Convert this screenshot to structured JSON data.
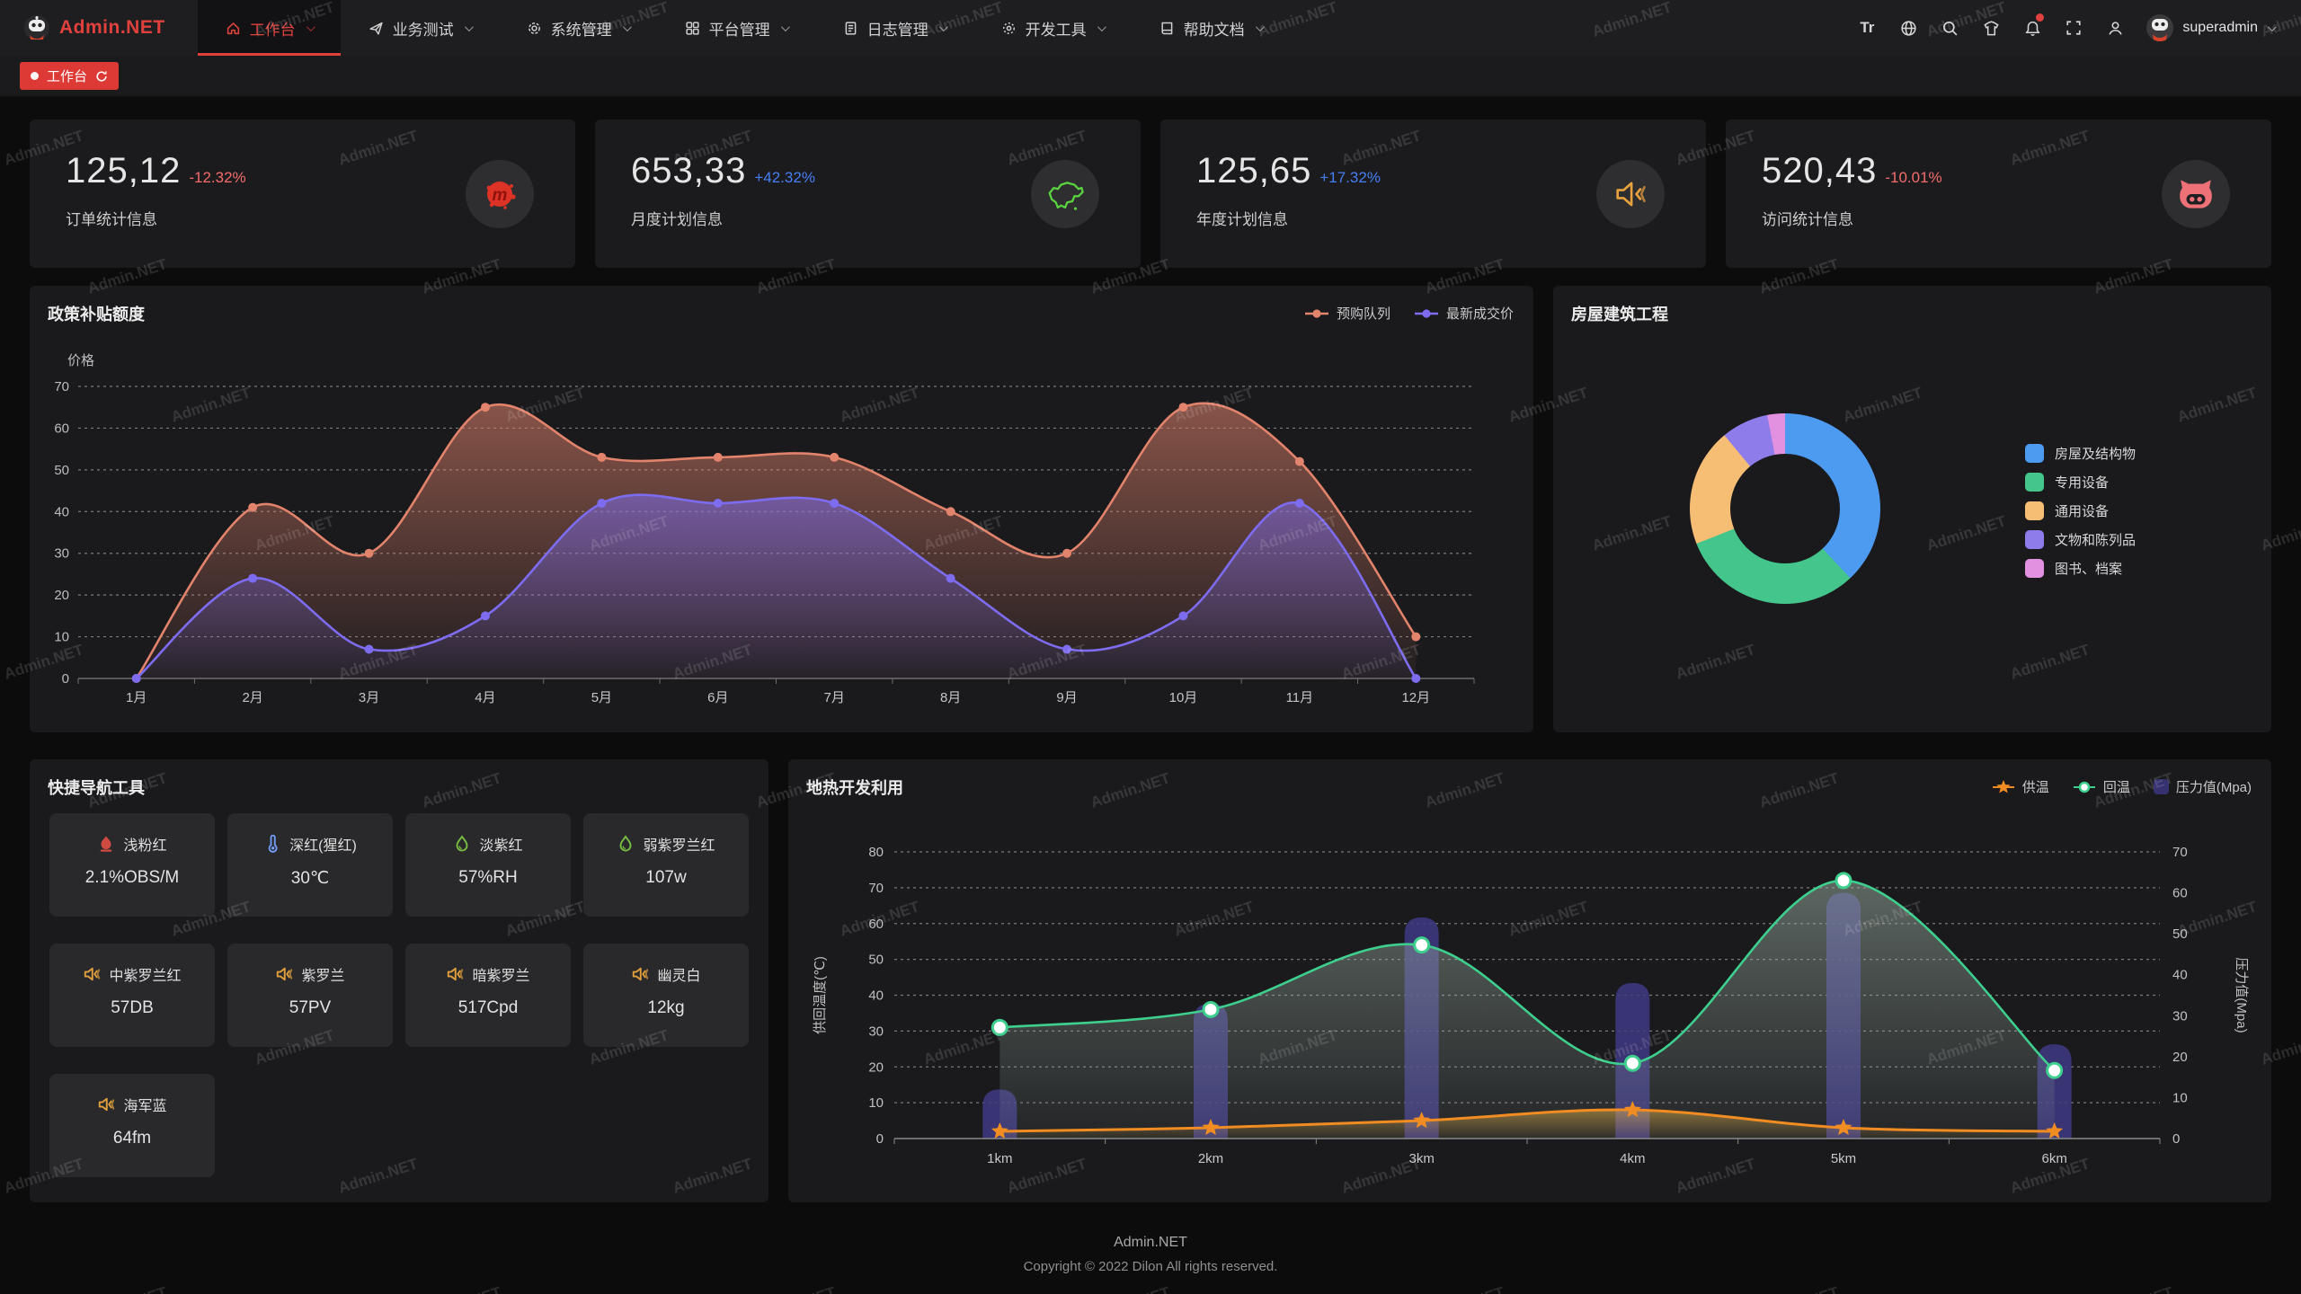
{
  "brand": {
    "name": "Admin.NET",
    "color": "#e0413d"
  },
  "nav": {
    "items": [
      {
        "label": "工作台",
        "icon": "home-icon",
        "active": true
      },
      {
        "label": "业务测试",
        "icon": "send-icon",
        "active": false
      },
      {
        "label": "系统管理",
        "icon": "gear-icon",
        "active": false
      },
      {
        "label": "平台管理",
        "icon": "grid-icon",
        "active": false
      },
      {
        "label": "日志管理",
        "icon": "log-icon",
        "active": false
      },
      {
        "label": "开发工具",
        "icon": "tools-icon",
        "active": false
      },
      {
        "label": "帮助文档",
        "icon": "book-icon",
        "active": false
      }
    ],
    "font_size_tool": "Tr",
    "username": "superadmin"
  },
  "tabbar": {
    "active_tab": "工作台"
  },
  "stats": [
    {
      "value": "125,12",
      "delta": "-12.32%",
      "trend": "down",
      "label": "订单统计信息",
      "icon": "meetup-icon"
    },
    {
      "value": "653,33",
      "delta": "+42.32%",
      "trend": "up",
      "label": "月度计划信息",
      "icon": "china-map-icon"
    },
    {
      "value": "125,65",
      "delta": "+17.32%",
      "trend": "up",
      "label": "年度计划信息",
      "icon": "speaker-mute-icon"
    },
    {
      "value": "520,43",
      "delta": "-10.01%",
      "trend": "down",
      "label": "访问统计信息",
      "icon": "gitee-cat-icon"
    }
  ],
  "chart_data": [
    {
      "type": "area",
      "title": "政策补贴额度",
      "ylabel": "价格",
      "ylim": [
        0,
        70
      ],
      "grid": "dashed",
      "legend_position": "top-right",
      "categories": [
        "1月",
        "2月",
        "3月",
        "4月",
        "5月",
        "6月",
        "7月",
        "8月",
        "9月",
        "10月",
        "11月",
        "12月"
      ],
      "series": [
        {
          "name": "预购队列",
          "color": "#e2836c",
          "values": [
            0,
            41,
            30,
            65,
            53,
            53,
            53,
            40,
            30,
            65,
            52,
            10
          ]
        },
        {
          "name": "最新成交价",
          "color": "#7d6cf0",
          "values": [
            0,
            24,
            7,
            15,
            42,
            42,
            42,
            24,
            7,
            15,
            42,
            0
          ]
        }
      ]
    },
    {
      "type": "pie",
      "title": "房屋建筑工程",
      "legend_position": "right",
      "slices": [
        {
          "name": "房屋及结构物",
          "value": 38,
          "color": "#4d9bf0"
        },
        {
          "name": "专用设备",
          "value": 31,
          "color": "#43c58b"
        },
        {
          "name": "通用设备",
          "value": 20,
          "color": "#f6bd75"
        },
        {
          "name": "文物和陈列品",
          "value": 8,
          "color": "#8d7cea"
        },
        {
          "name": "图书、档案",
          "value": 3,
          "color": "#e291e0"
        }
      ]
    },
    {
      "type": "line+bar",
      "title": "地热开发利用",
      "legend_position": "top-right",
      "categories": [
        "1km",
        "2km",
        "3km",
        "4km",
        "5km",
        "6km"
      ],
      "y_left": {
        "label": "供回温度(℃)",
        "min": 0,
        "max": 80
      },
      "y_right": {
        "label": "压力值(Mpa)",
        "min": 0,
        "max": 70
      },
      "series": [
        {
          "name": "供温",
          "type": "line",
          "marker": "star",
          "axis": "left",
          "color": "#f08c21",
          "values": [
            2,
            3,
            5,
            8,
            3,
            2
          ]
        },
        {
          "name": "回温",
          "type": "line",
          "marker": "circle",
          "axis": "left",
          "color": "#3ecf8e",
          "values": [
            31,
            36,
            54,
            21,
            72,
            19
          ]
        },
        {
          "name": "压力值(Mpa)",
          "type": "bar",
          "axis": "right",
          "color": "#403a82",
          "values": [
            12,
            33,
            54,
            38,
            60,
            23
          ]
        }
      ]
    }
  ],
  "quick_nav": {
    "title": "快捷导航工具",
    "items": [
      {
        "name": "浅粉红",
        "value": "2.1%OBS/M",
        "icon": "fire-icon",
        "color": "#cf4a41"
      },
      {
        "name": "深红(猩红)",
        "value": "30℃",
        "icon": "thermometer-icon",
        "color": "#6f9bf5"
      },
      {
        "name": "淡紫红",
        "value": "57%RH",
        "icon": "drop-icon",
        "color": "#7ac143"
      },
      {
        "name": "弱紫罗兰红",
        "value": "107w",
        "icon": "drop-icon",
        "color": "#7ac143"
      },
      {
        "name": "中紫罗兰红",
        "value": "57DB",
        "icon": "speaker-icon",
        "color": "#e2a13c"
      },
      {
        "name": "紫罗兰",
        "value": "57PV",
        "icon": "speaker-icon",
        "color": "#e2a13c"
      },
      {
        "name": "暗紫罗兰",
        "value": "517Cpd",
        "icon": "speaker-icon",
        "color": "#e2a13c"
      },
      {
        "name": "幽灵白",
        "value": "12kg",
        "icon": "speaker-icon",
        "color": "#e2a13c"
      },
      {
        "name": "海军蓝",
        "value": "64fm",
        "icon": "speaker-icon",
        "color": "#e2a13c"
      }
    ]
  },
  "footer": {
    "line1": "Admin.NET",
    "line2": "Copyright © 2022 Dilon All rights reserved."
  },
  "watermark": "Admin.NET"
}
